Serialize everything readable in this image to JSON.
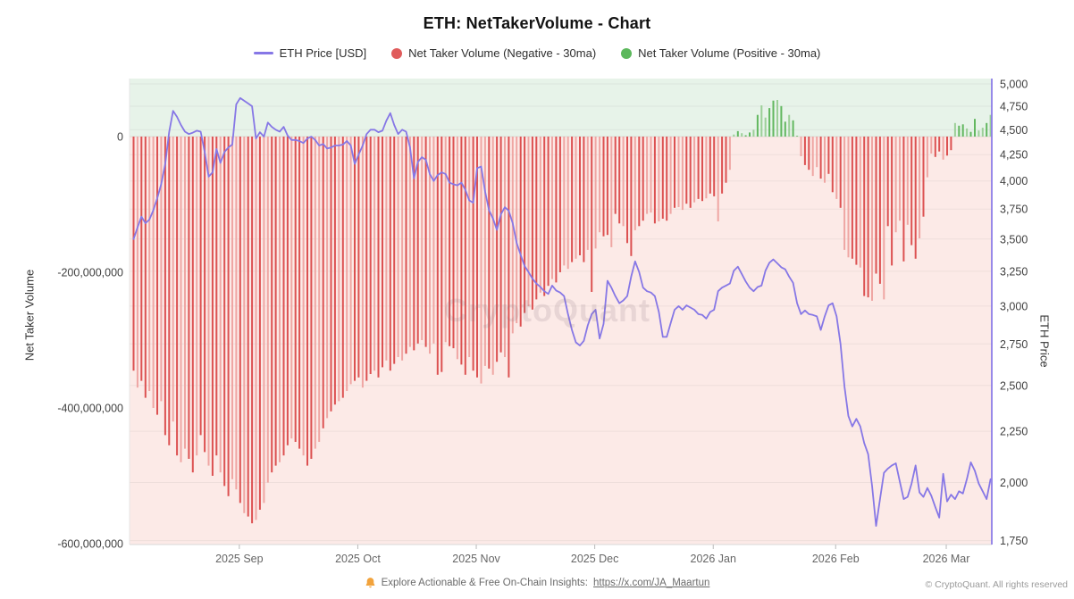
{
  "title": "ETH: NetTakerVolume - Chart",
  "watermark": "CryptoQuant",
  "colors": {
    "price_line": "#8677e6",
    "neg_bar": "#dc5151",
    "neg_bar_light": "#efa6a3",
    "pos_bar": "#62b75f",
    "pos_bar_light": "#9ccf98",
    "bg_positive_zone": "#e7f3e9",
    "bg_negative_zone": "#fceae7",
    "grid": "rgba(120,120,120,0.10)",
    "bell": "#f2a33c"
  },
  "legend": [
    {
      "label": "ETH Price [USD]",
      "marker": "line",
      "color": "#8677e6"
    },
    {
      "label": "Net Taker Volume (Negative - 30ma)",
      "marker": "dot",
      "color": "#e05c5c"
    },
    {
      "label": "Net Taker Volume (Positive - 30ma)",
      "marker": "dot",
      "color": "#5cb85c"
    }
  ],
  "footer": {
    "text": "Explore Actionable & Free On-Chain Insights:",
    "link": "https://x.com/JA_Maartun",
    "copyright": "© CryptoQuant. All rights reserved"
  },
  "chart_data": {
    "type": "bar",
    "subtype": "mixed-bar-line-dual-axis",
    "left_axis": {
      "title": "Net Taker Volume",
      "ticks": [
        0,
        -200000000,
        -400000000,
        -600000000
      ],
      "scale": "linear"
    },
    "right_axis": {
      "title": "ETH Price",
      "ticks": [
        5000,
        4750,
        4500,
        4250,
        4000,
        3750,
        3500,
        3250,
        3000,
        2750,
        2500,
        2250,
        2000,
        1750
      ],
      "scale": "log",
      "range": [
        1700,
        5050
      ]
    },
    "x_axis": {
      "tick_labels": [
        "2025 Sep",
        "2025 Oct",
        "2025 Nov",
        "2025 Dec",
        "2026 Jan",
        "2026 Feb",
        "2026 Mar"
      ],
      "tick_day_indices": [
        27,
        57,
        87,
        117,
        147,
        178,
        206
      ],
      "start": "2025 Aug",
      "end": "2026 Mar",
      "days": 218
    },
    "series": [
      {
        "name": "Net Taker Volume (30ma)",
        "type": "bar",
        "axis": "left",
        "unit": "millions",
        "values": [
          -345,
          -370,
          -360,
          -385,
          -375,
          -400,
          -410,
          -390,
          -440,
          -455,
          -420,
          -470,
          -480,
          -460,
          -475,
          -495,
          -470,
          -440,
          -465,
          -485,
          -500,
          -470,
          -495,
          -515,
          -530,
          -505,
          -520,
          -540,
          -555,
          -560,
          -570,
          -565,
          -550,
          -540,
          -510,
          -495,
          -485,
          -480,
          -470,
          -455,
          -445,
          -450,
          -460,
          -470,
          -485,
          -475,
          -460,
          -450,
          -430,
          -415,
          -405,
          -395,
          -390,
          -385,
          -375,
          -365,
          -360,
          -355,
          -370,
          -360,
          -350,
          -345,
          -355,
          -340,
          -330,
          -345,
          -335,
          -325,
          -330,
          -320,
          -310,
          -315,
          -305,
          -300,
          -310,
          -320,
          -305,
          -351,
          -347,
          -303,
          -309,
          -312,
          -328,
          -336,
          -351,
          -325,
          -345,
          -355,
          -364,
          -338,
          -342,
          -351,
          -332,
          -318,
          -325,
          -355,
          -290,
          -275,
          -280,
          -260,
          -250,
          -255,
          -240,
          -230,
          -235,
          -220,
          -210,
          -215,
          -200,
          -190,
          -195,
          -185,
          -180,
          -175,
          -185,
          -167,
          -229,
          -165,
          -141,
          -147,
          -145,
          -163,
          -114,
          -128,
          -132,
          -157,
          -176,
          -138,
          -132,
          -124,
          -114,
          -112,
          -128,
          -125,
          -121,
          -124,
          -114,
          -105,
          -104,
          -108,
          -99,
          -105,
          -97,
          -92,
          -95,
          -91,
          -84,
          -88,
          -125,
          -84,
          -68,
          -49,
          3,
          8,
          5,
          2,
          6,
          10,
          32,
          46,
          28,
          42,
          53,
          54,
          45,
          22,
          32,
          24,
          1,
          -29,
          -42,
          -49,
          -58,
          -45,
          -62,
          -68,
          -55,
          -82,
          -92,
          -105,
          -167,
          -178,
          -180,
          -189,
          -193,
          -235,
          -237,
          -242,
          -202,
          -217,
          -240,
          -132,
          -190,
          -141,
          -124,
          -184,
          -130,
          -160,
          -180,
          -150,
          -118,
          -60,
          -25,
          -30,
          -22,
          -34,
          -28,
          -20,
          20,
          16,
          18,
          12,
          7,
          26,
          9,
          13,
          20,
          32
        ]
      },
      {
        "name": "ETH Price [USD]",
        "type": "line",
        "axis": "right",
        "unit": "USD",
        "values": [
          3500,
          3595,
          3685,
          3630,
          3660,
          3740,
          3845,
          3970,
          4160,
          4475,
          4700,
          4635,
          4550,
          4480,
          4455,
          4470,
          4490,
          4480,
          4275,
          4040,
          4080,
          4305,
          4170,
          4275,
          4320,
          4350,
          4770,
          4840,
          4810,
          4780,
          4750,
          4410,
          4475,
          4430,
          4575,
          4530,
          4500,
          4480,
          4530,
          4440,
          4395,
          4395,
          4385,
          4365,
          4410,
          4430,
          4395,
          4340,
          4355,
          4310,
          4320,
          4340,
          4340,
          4350,
          4385,
          4340,
          4160,
          4250,
          4340,
          4455,
          4500,
          4500,
          4475,
          4490,
          4595,
          4675,
          4550,
          4455,
          4500,
          4480,
          4320,
          4025,
          4180,
          4225,
          4200,
          4065,
          4000,
          4055,
          4080,
          4065,
          3985,
          3970,
          3960,
          3985,
          3920,
          3825,
          3805,
          4120,
          4135,
          3905,
          3740,
          3670,
          3575,
          3705,
          3765,
          3735,
          3630,
          3470,
          3375,
          3290,
          3245,
          3195,
          3160,
          3135,
          3105,
          3085,
          3145,
          3110,
          3095,
          3070,
          2945,
          2840,
          2760,
          2740,
          2770,
          2870,
          2945,
          2975,
          2785,
          2880,
          3180,
          3130,
          3070,
          3020,
          3040,
          3070,
          3210,
          3325,
          3245,
          3130,
          3105,
          3095,
          3070,
          2960,
          2795,
          2795,
          2885,
          2975,
          3000,
          2975,
          3005,
          2990,
          2975,
          2945,
          2940,
          2915,
          2960,
          2975,
          3105,
          3130,
          3145,
          3160,
          3255,
          3285,
          3230,
          3175,
          3130,
          3105,
          3135,
          3145,
          3255,
          3315,
          3340,
          3310,
          3280,
          3265,
          3210,
          3165,
          3020,
          2945,
          2970,
          2945,
          2940,
          2930,
          2840,
          2930,
          3005,
          3020,
          2930,
          2750,
          2495,
          2330,
          2275,
          2315,
          2275,
          2190,
          2135,
          1985,
          1810,
          1925,
          2045,
          2065,
          2080,
          2090,
          2005,
          1925,
          1935,
          1995,
          2080,
          1955,
          1935,
          1975,
          1940,
          1890,
          1845,
          2040,
          1915,
          1945,
          1925,
          1960,
          1950,
          2015,
          2095,
          2055,
          1995,
          1960,
          1925,
          2015
        ]
      }
    ]
  }
}
